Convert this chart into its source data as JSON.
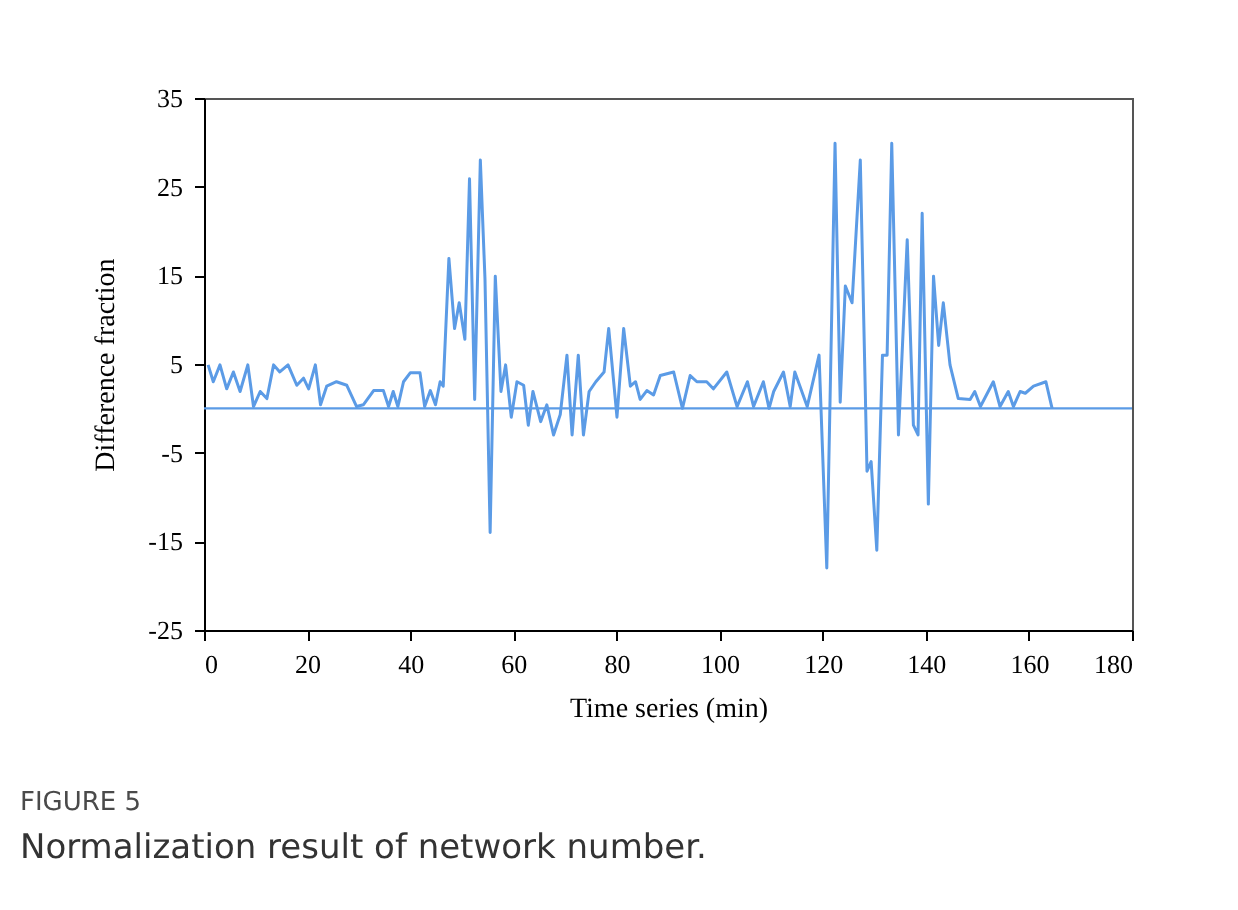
{
  "chart_data": {
    "type": "line",
    "xlabel": "Time series (min)",
    "ylabel": "Difference fraction",
    "x": [
      0.8,
      1.8,
      3.1,
      4.4,
      5.7,
      7.0,
      8.5,
      9.6,
      10.9,
      12.2,
      13.5,
      14.7,
      16.3,
      18.0,
      19.3,
      20.3,
      21.6,
      22.6,
      23.8,
      25.7,
      27.7,
      29.6,
      30.9,
      32.9,
      34.8,
      35.8,
      36.7,
      37.6,
      38.7,
      40.0,
      41.9,
      42.8,
      43.9,
      44.9,
      45.8,
      46.4,
      47.5,
      48.6,
      49.5,
      50.6,
      51.5,
      52.5,
      53.6,
      54.5,
      55.5,
      56.5,
      57.6,
      58.5,
      59.6,
      60.7,
      62.0,
      62.9,
      63.8,
      65.3,
      66.5,
      67.8,
      69.1,
      70.4,
      71.4,
      72.6,
      73.6,
      74.7,
      76.0,
      77.6,
      78.5,
      80.1,
      81.4,
      82.7,
      83.7,
      84.6,
      85.9,
      87.2,
      88.5,
      91.1,
      92.8,
      94.3,
      95.6,
      97.5,
      98.8,
      101.4,
      103.4,
      105.4,
      106.6,
      108.5,
      109.6,
      110.5,
      112.4,
      113.7,
      114.6,
      117.0,
      119.3,
      120.8,
      122.4,
      123.4,
      124.4,
      125.7,
      127.3,
      128.6,
      129.4,
      130.5,
      131.6,
      132.5,
      133.4,
      134.7,
      136.4,
      137.6,
      138.5,
      139.3,
      140.5,
      141.5,
      142.5,
      143.4,
      144.7,
      146.3,
      148.6,
      149.5,
      150.6,
      153.1,
      154.4,
      156.0,
      157.0,
      158.3,
      159.3,
      160.9,
      163.3,
      164.5
    ],
    "series": [
      {
        "color": "#5b9be6",
        "values": [
          4.9,
          3.0,
          4.9,
          2.2,
          4.1,
          1.9,
          4.9,
          0.2,
          1.9,
          1.1,
          4.9,
          4.1,
          4.9,
          2.6,
          3.4,
          2.2,
          4.9,
          0.4,
          2.5,
          3.0,
          2.6,
          0.2,
          0.4,
          2.0,
          2.0,
          0.2,
          1.9,
          0.2,
          3.0,
          4.0,
          4.0,
          0.2,
          2.0,
          0.4,
          3.0,
          2.5,
          16.9,
          9.0,
          11.9,
          7.8,
          25.9,
          1.0,
          28.0,
          14.6,
          -14.0,
          14.9,
          1.9,
          4.9,
          -1.0,
          3.0,
          2.6,
          -1.9,
          1.9,
          -1.5,
          0.4,
          -3.0,
          -0.7,
          6.0,
          -3.0,
          6.0,
          -3.0,
          1.9,
          3.0,
          4.1,
          9.0,
          -1.0,
          9.0,
          2.5,
          3.0,
          1.0,
          2.0,
          1.5,
          3.7,
          4.1,
          0.0,
          3.7,
          3.0,
          3.0,
          2.2,
          4.1,
          0.2,
          3.0,
          0.2,
          3.0,
          0.0,
          1.9,
          4.1,
          0.2,
          4.1,
          0.2,
          6.0,
          -18.0,
          29.9,
          0.7,
          13.8,
          11.9,
          28.0,
          -7.1,
          -6.0,
          -16.0,
          6.0,
          6.0,
          29.9,
          -3.0,
          19.0,
          -1.9,
          -3.0,
          22.0,
          -10.8,
          14.9,
          7.1,
          11.9,
          4.9,
          1.1,
          1.0,
          1.9,
          0.2,
          3.0,
          0.2,
          1.9,
          0.2,
          1.9,
          1.7,
          2.5,
          3.0,
          0.0
        ]
      }
    ],
    "xlim": [
      0,
      180
    ],
    "xticks": [
      0,
      20,
      40,
      60,
      80,
      100,
      120,
      140,
      160,
      180
    ],
    "ylim": [
      -25,
      35
    ],
    "yticks": [
      -25,
      -15,
      -5,
      5,
      15,
      25,
      35
    ],
    "ref_lines": [
      {
        "axis": "y",
        "value": 0,
        "color": "#5b9be6"
      }
    ],
    "grid": false,
    "marker": "none",
    "line_style": "solid",
    "annotations": [
      "FIGURE 5",
      "Normalization result of network number."
    ]
  }
}
